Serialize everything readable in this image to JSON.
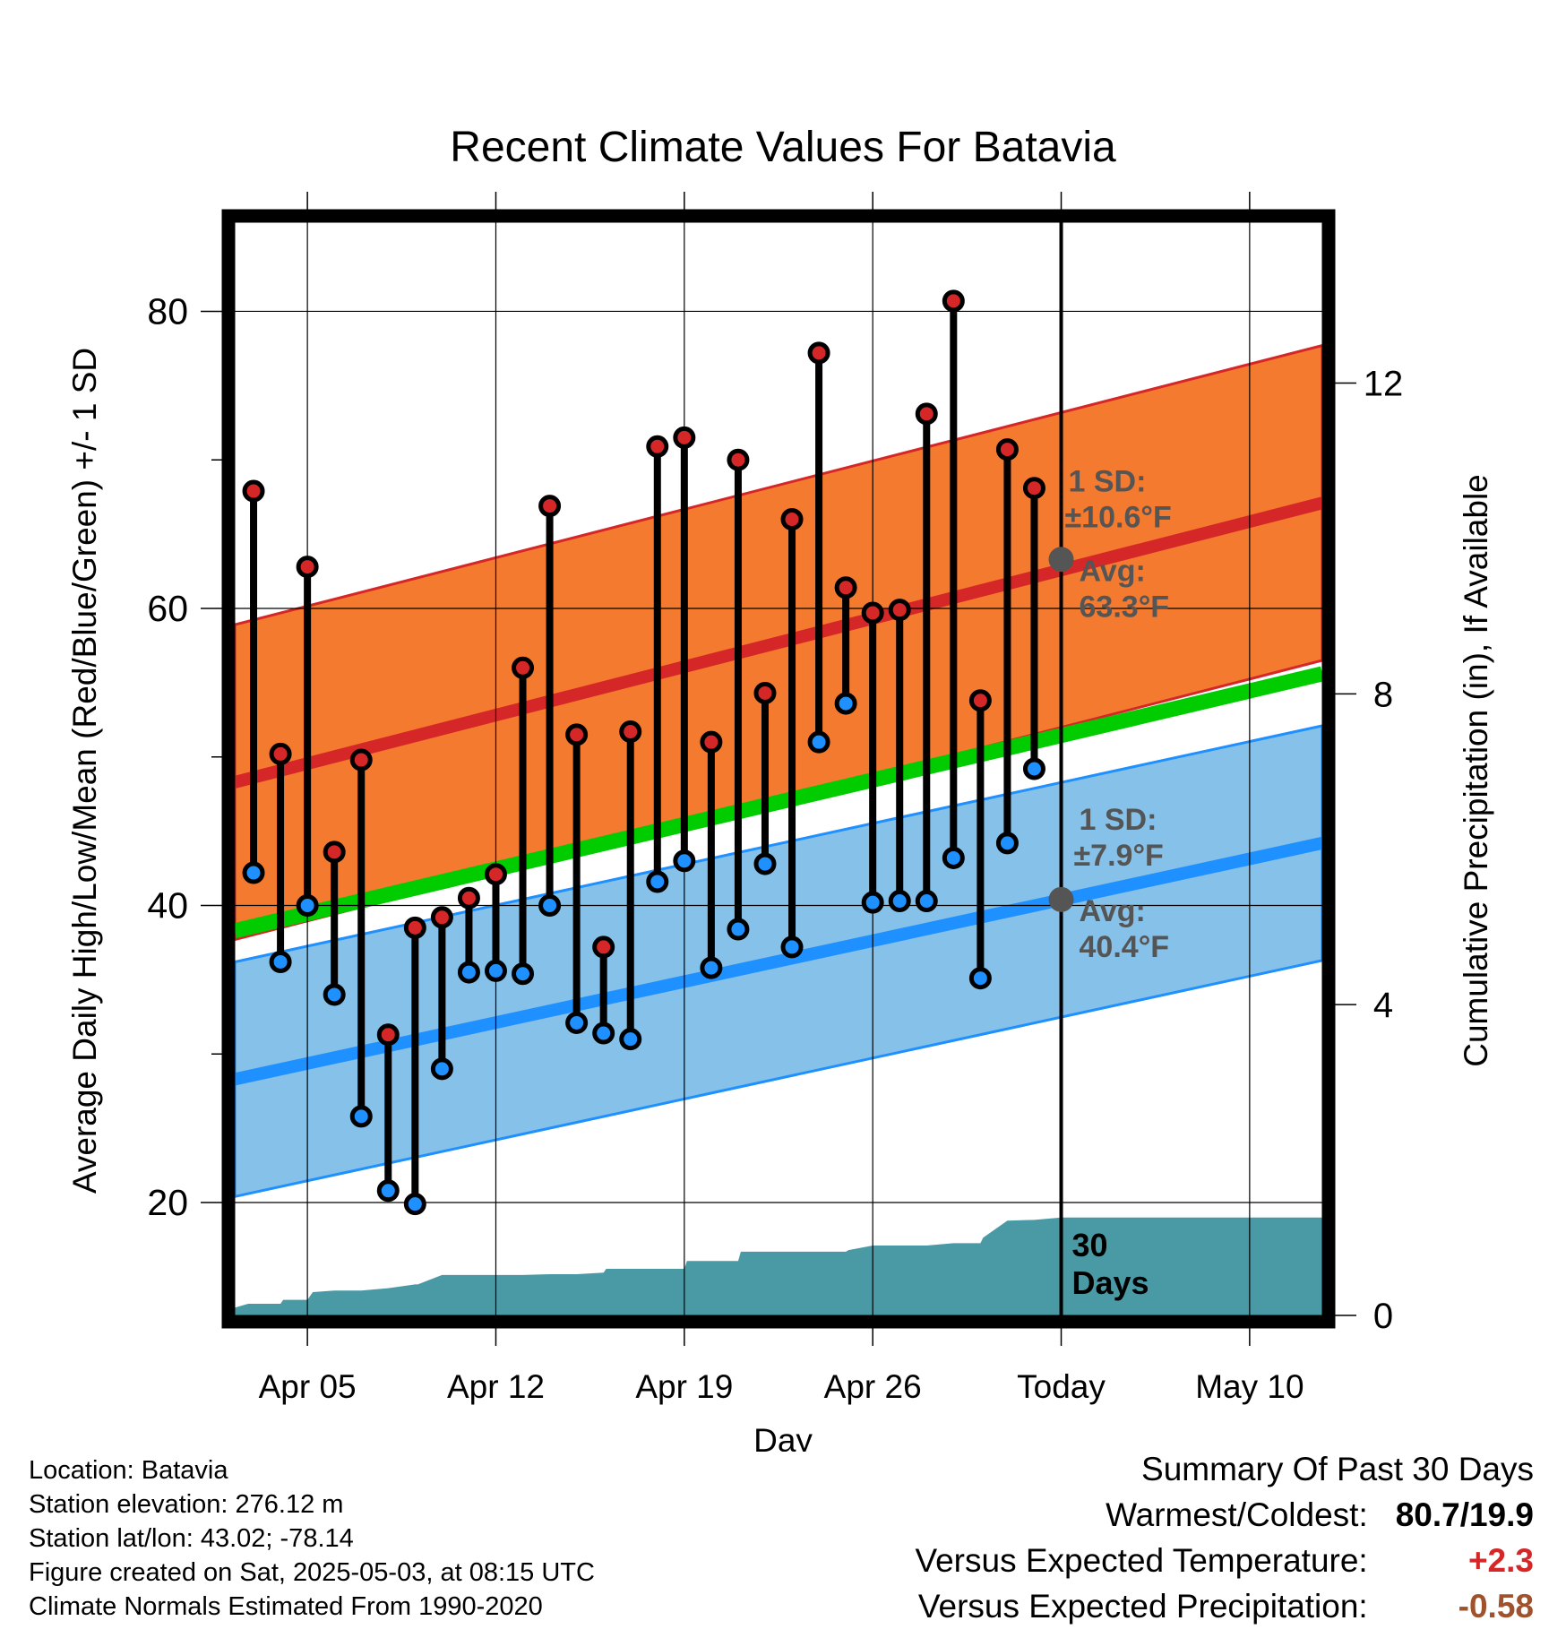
{
  "chart_data": {
    "type": "line",
    "title": "Recent Climate Values For Batavia",
    "xlabel": "Day",
    "ylabel": "Average Daily High/Low/Mean (Red/Blue/Green) +/- 1 SD",
    "y2label": "Cumulative Precipitation (in), If Available",
    "x_ticks": [
      {
        "day": 5,
        "label": "Apr 05"
      },
      {
        "day": 12,
        "label": "Apr 12"
      },
      {
        "day": 19,
        "label": "Apr 19"
      },
      {
        "day": 26,
        "label": "Apr 26"
      },
      {
        "day": 33,
        "label": "Today"
      },
      {
        "day": 40,
        "label": "May 10"
      }
    ],
    "xlim": [
      2.3,
      42.7
    ],
    "ylim": [
      12.4,
      86.0
    ],
    "y_ticks": [
      20,
      40,
      60,
      80
    ],
    "y_minor_ticks": [
      30,
      50,
      70
    ],
    "y2lim": [
      0,
      14.07
    ],
    "y2_ticks": [
      0,
      4,
      8,
      12
    ],
    "grid": true,
    "today_day": 33,
    "normals": {
      "high_mean": {
        "day_start": 2.3,
        "day_end": 42.7,
        "start": 48.3,
        "end": 67.1,
        "color": "#d62728"
      },
      "high_sd": 10.6,
      "low_mean": {
        "day_start": 2.3,
        "day_end": 42.7,
        "start": 28.3,
        "end": 44.2,
        "color": "#1e90ff"
      },
      "low_sd": 7.9,
      "mean": {
        "day_start": 2.3,
        "day_end": 42.7,
        "start": 38.3,
        "end": 55.6,
        "color": "#00cc00"
      },
      "high_band_color": "#f47a30",
      "low_band_color": "#85c1e9"
    },
    "series": [
      {
        "name": "High",
        "color": "#d62728",
        "x": [
          3,
          4,
          5,
          6,
          7,
          8,
          9,
          10,
          11,
          12,
          13,
          14,
          15,
          16,
          17,
          18,
          19,
          20,
          21,
          22,
          23,
          24,
          25,
          26,
          27,
          28,
          29,
          30,
          31,
          32
        ],
        "values": [
          67.9,
          50.2,
          62.8,
          43.6,
          49.8,
          31.3,
          38.5,
          39.2,
          40.5,
          42.1,
          56.0,
          66.9,
          51.5,
          37.2,
          51.7,
          70.9,
          71.5,
          51.0,
          70.0,
          54.3,
          66.0,
          77.2,
          61.4,
          59.7,
          59.9,
          73.1,
          80.7,
          53.8,
          70.7,
          68.1
        ]
      },
      {
        "name": "Low",
        "color": "#1e90ff",
        "x": [
          3,
          4,
          5,
          6,
          7,
          8,
          9,
          10,
          11,
          12,
          13,
          14,
          15,
          16,
          17,
          18,
          19,
          20,
          21,
          22,
          23,
          24,
          25,
          26,
          27,
          28,
          29,
          30,
          31,
          32
        ],
        "values": [
          42.2,
          36.2,
          40.0,
          34.0,
          25.8,
          20.8,
          19.9,
          29.0,
          35.5,
          35.6,
          35.4,
          40.0,
          32.1,
          31.4,
          31.0,
          41.6,
          43.0,
          35.8,
          38.4,
          42.8,
          37.2,
          51.0,
          53.6,
          40.2,
          40.3,
          40.3,
          43.2,
          35.1,
          44.2,
          49.2
        ]
      }
    ],
    "precipitation": {
      "x": [
        2.3,
        2.8,
        3,
        4,
        4.1,
        5,
        5.2,
        6,
        7,
        8,
        9,
        9.1,
        10,
        11,
        12,
        13,
        14,
        15,
        16,
        16.1,
        17,
        18,
        19,
        19.1,
        20,
        21,
        21.1,
        22,
        23,
        24,
        25,
        25.1,
        26,
        27,
        28,
        29,
        30,
        30.1,
        31,
        32,
        33,
        42.7
      ],
      "values": [
        0.1,
        0.15,
        0.15,
        0.15,
        0.2,
        0.2,
        0.3,
        0.32,
        0.32,
        0.35,
        0.4,
        0.4,
        0.52,
        0.52,
        0.52,
        0.52,
        0.53,
        0.53,
        0.55,
        0.6,
        0.6,
        0.6,
        0.6,
        0.7,
        0.7,
        0.7,
        0.82,
        0.82,
        0.82,
        0.82,
        0.82,
        0.84,
        0.9,
        0.9,
        0.9,
        0.93,
        0.93,
        1.0,
        1.22,
        1.23,
        1.26,
        1.26
      ],
      "color": "#4a9aa5",
      "label": "30\nDays"
    },
    "annotations": {
      "high_sd_label": "1 SD:",
      "high_sd_value": "±10.6°F",
      "high_avg_label": "Avg:",
      "high_avg_value": "63.3°F",
      "high_avg_y": 63.3,
      "low_sd_label": "1 SD:",
      "low_sd_value": "±7.9°F",
      "low_avg_label": "Avg:",
      "low_avg_value": "40.4°F",
      "low_avg_y": 40.4,
      "precip_label_1": "30",
      "precip_label_2": "Days"
    }
  },
  "footer": {
    "location": "Location: Batavia",
    "elevation": "Station elevation: 276.12 m",
    "latlon": "Station lat/lon: 43.02; -78.14",
    "created": "Figure created on Sat, 2025-05-03, at 08:15 UTC",
    "normals": "Climate Normals Estimated From 1990-2020"
  },
  "summary": {
    "title": "Summary Of Past 30 Days",
    "warm_cold_label": "Warmest/Coldest:",
    "warm_cold_value": "80.7/19.9",
    "temp_label": "Versus Expected Temperature:",
    "temp_value": "+2.3",
    "temp_color": "#d62728",
    "precip_label": "Versus Expected Precipitation:",
    "precip_value": "-0.58",
    "precip_color": "#a0522d"
  }
}
